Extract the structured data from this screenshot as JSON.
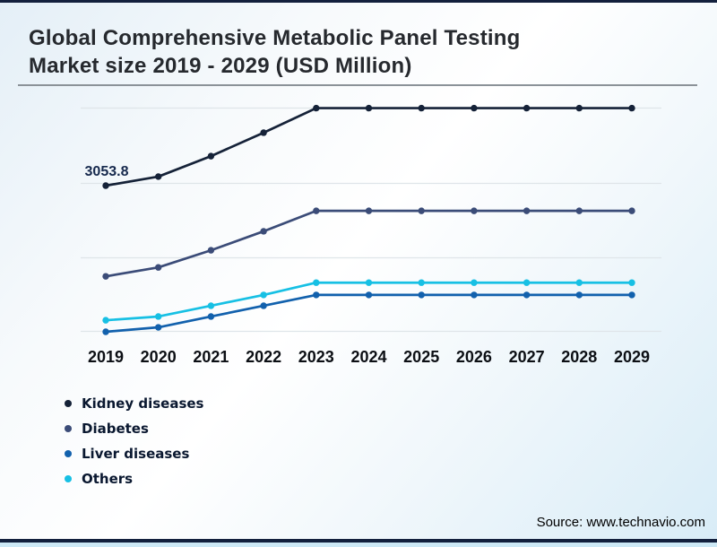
{
  "header": {
    "title_line1": "Global Comprehensive Metabolic Panel Testing",
    "title_line2": "Market size 2019 - 2029 (USD Million)"
  },
  "chart_data": {
    "type": "line",
    "title": "Global Comprehensive Metabolic Panel Testing Market size 2019 - 2029 (USD Million)",
    "xlabel": "",
    "ylabel": "USD Million",
    "x": [
      2019,
      2020,
      2021,
      2022,
      2023,
      2024,
      2025,
      2026,
      2027,
      2028,
      2029
    ],
    "series": [
      {
        "name": "Kidney diseases",
        "color": "#152238",
        "values": [
          3053.8,
          3175,
          3450,
          3765,
          4095,
          4095,
          4095,
          4095,
          4095,
          4095,
          4095
        ]
      },
      {
        "name": "Diabetes",
        "color": "#3b4c78",
        "values": [
          1835,
          1955,
          2185,
          2440,
          2715,
          2715,
          2715,
          2715,
          2715,
          2715,
          2715
        ]
      },
      {
        "name": "Liver diseases",
        "color": "#1261ad",
        "values": [
          1090,
          1150,
          1295,
          1440,
          1585,
          1585,
          1585,
          1585,
          1585,
          1585,
          1585
        ]
      },
      {
        "name": "Others",
        "color": "#17c0e4",
        "values": [
          1245,
          1295,
          1440,
          1585,
          1750,
          1750,
          1750,
          1750,
          1750,
          1750,
          1750
        ]
      }
    ],
    "data_labels": [
      {
        "series": "Kidney diseases",
        "x": 2019,
        "text": "3053.8"
      }
    ],
    "y_axis_visible": false,
    "approx_y_range": [
      1000,
      4300
    ],
    "grid": "horizontal",
    "legend_position": "bottom-left",
    "note": "Only the 2019 Kidney diseases point is labeled (3053.8); other values estimated from gridlines"
  },
  "legend": {
    "items": [
      {
        "label": "Kidney diseases",
        "color": "#152238"
      },
      {
        "label": "Diabetes",
        "color": "#3b4c78"
      },
      {
        "label": "Liver diseases",
        "color": "#1261ad"
      },
      {
        "label": "Others",
        "color": "#17c0e4"
      }
    ]
  },
  "footer": {
    "source_text": "Source: www.technavio.com"
  },
  "colors": {
    "frame_border": "#13203d",
    "bottom_strip": "#cde9f6",
    "gridline": "#dfe5e9",
    "title_text": "#26292e",
    "axis_label_text": "#0c0f14",
    "data_label_text": "#16294d",
    "legend_text": "#0a1830",
    "underline": "#8b9298"
  }
}
